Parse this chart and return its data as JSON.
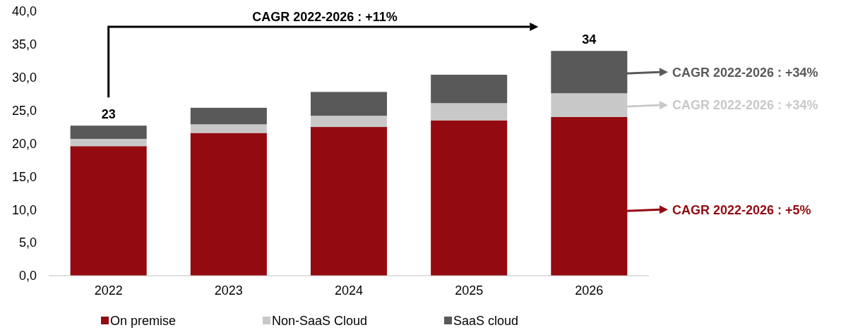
{
  "chart_data": {
    "type": "bar",
    "stacked": true,
    "categories": [
      "2022",
      "2023",
      "2024",
      "2025",
      "2026"
    ],
    "series": [
      {
        "name": "On premise",
        "color": "#930a10",
        "values": [
          19.6,
          21.6,
          22.5,
          23.5,
          24.0
        ]
      },
      {
        "name": "Non-SaaS Cloud",
        "color": "#c8c8c8",
        "values": [
          1.1,
          1.3,
          1.7,
          2.6,
          3.6
        ]
      },
      {
        "name": "SaaS cloud",
        "color": "#595959",
        "values": [
          2.0,
          2.5,
          3.6,
          4.3,
          6.4
        ]
      }
    ],
    "ylim": [
      0,
      40
    ],
    "yticks": [
      {
        "value": 0,
        "label": "0,0"
      },
      {
        "value": 5,
        "label": "5,0"
      },
      {
        "value": 10,
        "label": "10,0"
      },
      {
        "value": 15,
        "label": "15,0"
      },
      {
        "value": 20,
        "label": "20,0"
      },
      {
        "value": 25,
        "label": "25,0"
      },
      {
        "value": 30,
        "label": "30,0"
      },
      {
        "value": 35,
        "label": "35,0"
      },
      {
        "value": 40,
        "label": "40,0"
      }
    ],
    "totals": [
      "23",
      null,
      null,
      null,
      "34"
    ],
    "annotations": [
      "CAGR 2022-2026 : +11%",
      "CAGR 2022-2026 : +5%",
      "CAGR 2022-2026 : +34%",
      "CAGR 2022-2026 : +34%"
    ],
    "grid": false,
    "legend": "bottom"
  }
}
